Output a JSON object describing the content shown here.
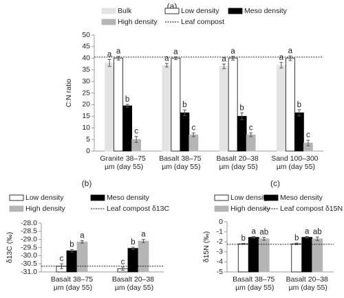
{
  "chart_data": [
    {
      "type": "bar",
      "title": "(a)",
      "ylabel": "C:N ratio",
      "categories": [
        "Granite 38–75 µm (day 55)",
        "Basalt 38–75 µm (day 55)",
        "Basalt 20–38 µm (day 55)",
        "Sand 100–300 µm (day 55)"
      ],
      "series": [
        {
          "name": "Bulk",
          "color": "#e3e3e3",
          "edgecolor": "#e3e3e3",
          "values": [
            38,
            37,
            36.5,
            37
          ],
          "errors": [
            1.5,
            0.8,
            1,
            1.2
          ],
          "labels": [
            "a",
            "a",
            "a",
            "a"
          ]
        },
        {
          "name": "Low density",
          "color": "#ffffff",
          "edgecolor": "#000000",
          "values": [
            40,
            40,
            40,
            40
          ],
          "errors": [
            0.8,
            0.6,
            0.8,
            1
          ],
          "labels": [
            "a",
            "a",
            "a",
            "a"
          ]
        },
        {
          "name": "Meso density",
          "color": "#000000",
          "edgecolor": "#000000",
          "values": [
            19.5,
            16.5,
            15,
            16.5
          ],
          "errors": [
            0.6,
            1.2,
            1.5,
            1.3
          ],
          "labels": [
            "b",
            "b",
            "b",
            "b"
          ]
        },
        {
          "name": "High density",
          "color": "#b5b5b5",
          "edgecolor": "#b5b5b5",
          "values": [
            5,
            7,
            7,
            3.5
          ],
          "errors": [
            1.3,
            0.8,
            0.8,
            1.2
          ],
          "labels": [
            "c",
            "c",
            "c",
            "c"
          ]
        }
      ],
      "reference_line": {
        "name": "Leaf compost",
        "value": 40.5,
        "color": "#000000"
      },
      "ylim": [
        0,
        50
      ],
      "yticks": [
        0,
        5,
        10,
        15,
        20,
        25,
        30,
        35,
        40,
        45,
        50
      ]
    },
    {
      "type": "bar",
      "title": "(b)",
      "ylabel": "δ13C (‰)",
      "categories": [
        "Basalt 38–75 µm (day 55)",
        "Basalt 20–38 µm (day 55)"
      ],
      "series": [
        {
          "name": "Low density",
          "color": "#ffffff",
          "edgecolor": "#000000",
          "values": [
            -30.65,
            -30.8
          ],
          "errors": [
            0.15,
            0.1
          ],
          "labels": [
            "c",
            "c"
          ]
        },
        {
          "name": "Meso density",
          "color": "#000000",
          "edgecolor": "#000000",
          "values": [
            -29.7,
            -29.55
          ],
          "errors": [
            0.08,
            0.07
          ],
          "labels": [
            "b",
            "b"
          ]
        },
        {
          "name": "High density",
          "color": "#b5b5b5",
          "edgecolor": "#b5b5b5",
          "values": [
            -29.15,
            -29.1
          ],
          "errors": [
            0.08,
            0.1
          ],
          "labels": [
            "a",
            "a"
          ]
        }
      ],
      "reference_line": {
        "name": "Leaf compost δ13C",
        "value": -30.65,
        "color": "#000000"
      },
      "ylim": [
        -31,
        -28
      ],
      "yticks": [
        {
          "value": -31,
          "label": "-31.0"
        },
        -30.5,
        {
          "value": -30,
          "label": "-30.0"
        },
        -29.5,
        {
          "value": -29,
          "label": "-29.0"
        },
        -28.5,
        {
          "value": -28,
          "label": "-28.0"
        }
      ]
    },
    {
      "type": "bar",
      "title": "(c)",
      "ylabel": "δ15N (‰)",
      "categories": [
        "Basalt 38–75 µm (day 55)",
        "Basalt 20–38 µm (day 55)"
      ],
      "series": [
        {
          "name": "Low density",
          "color": "#ffffff",
          "edgecolor": "#000000",
          "values": [
            -2.2,
            -2.2
          ],
          "errors": [
            0.05,
            0.08
          ],
          "labels": [
            "b",
            "b"
          ]
        },
        {
          "name": "Meso density",
          "color": "#000000",
          "edgecolor": "#000000",
          "values": [
            -1.55,
            -1.55
          ],
          "errors": [
            0.08,
            0.08
          ],
          "labels": [
            "a",
            "a"
          ]
        },
        {
          "name": "High density",
          "color": "#b5b5b5",
          "edgecolor": "#b5b5b5",
          "values": [
            -1.7,
            -1.7
          ],
          "errors": [
            0.15,
            0.18
          ],
          "labels": [
            "ab",
            "ab"
          ]
        }
      ],
      "reference_line": {
        "name": "Leaf compost δ15N",
        "value": -2.25,
        "color": "#000000"
      },
      "ylim": [
        -5,
        0
      ],
      "yticks": [
        -5,
        -4,
        -3,
        -2,
        -1,
        0
      ]
    }
  ]
}
